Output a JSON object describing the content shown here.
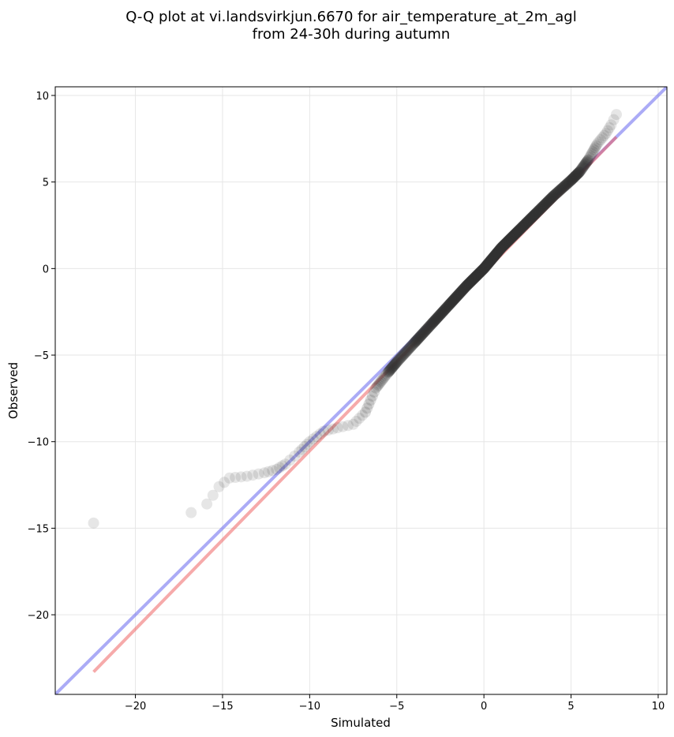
{
  "chart_data": {
    "type": "scatter",
    "title": [
      "Q-Q plot at vi.landsvirkjun.6670 for air_temperature_at_2m_agl",
      "from 24-30h during autumn"
    ],
    "xlabel": "Simulated",
    "ylabel": "Observed",
    "xlim": [
      -24.6,
      10.5
    ],
    "ylim": [
      -24.6,
      10.5
    ],
    "x_ticks": [
      -20,
      -15,
      -10,
      -5,
      0,
      5,
      10
    ],
    "y_ticks": [
      -20,
      -15,
      -10,
      -5,
      0,
      5,
      10
    ],
    "x_tick_labels": [
      "−20",
      "−15",
      "−10",
      "−5",
      "0",
      "5",
      "10"
    ],
    "y_tick_labels": [
      "−20",
      "−15",
      "−10",
      "−5",
      "0",
      "5",
      "10"
    ],
    "grid": true,
    "colors": {
      "points": "#333333",
      "identity_line": "#6666ee",
      "fit_line": "#ee5555"
    },
    "identity_line": {
      "x": [
        -24.6,
        10.5
      ],
      "y": [
        -24.6,
        10.5
      ]
    },
    "fit_line": {
      "x": [
        -22.4,
        7.6
      ],
      "y": [
        -23.3,
        7.6
      ]
    },
    "anchors": {
      "x": [
        -22.4,
        -16.8,
        -15.9,
        -15.2,
        -14.6,
        -13.6,
        -12.6,
        -11.9,
        -11.4,
        -10.6,
        -10.0,
        -9.2,
        -8.4,
        -7.5,
        -6.8,
        -6.2,
        -5.5,
        -5.0,
        -4.0,
        -3.0,
        -2.0,
        -1.0,
        0.0,
        1.0,
        2.0,
        3.0,
        4.0,
        5.0,
        5.5,
        6.0,
        6.5,
        7.0,
        7.3,
        7.6
      ],
      "y": [
        -14.7,
        -14.1,
        -13.6,
        -12.6,
        -12.1,
        -12.0,
        -11.8,
        -11.6,
        -11.3,
        -10.6,
        -10.0,
        -9.4,
        -9.2,
        -9.0,
        -8.3,
        -6.9,
        -6.0,
        -5.4,
        -4.3,
        -3.2,
        -2.1,
        -1.0,
        0.0,
        1.2,
        2.2,
        3.2,
        4.2,
        5.1,
        5.6,
        6.3,
        7.2,
        7.8,
        8.3,
        8.9
      ],
      "density": [
        1,
        1,
        2,
        2,
        3,
        3,
        3,
        3,
        3,
        4,
        4,
        3,
        3,
        4,
        6,
        10,
        18,
        25,
        40,
        50,
        60,
        70,
        72,
        70,
        60,
        50,
        40,
        25,
        15,
        8,
        5,
        3,
        2
      ]
    }
  }
}
